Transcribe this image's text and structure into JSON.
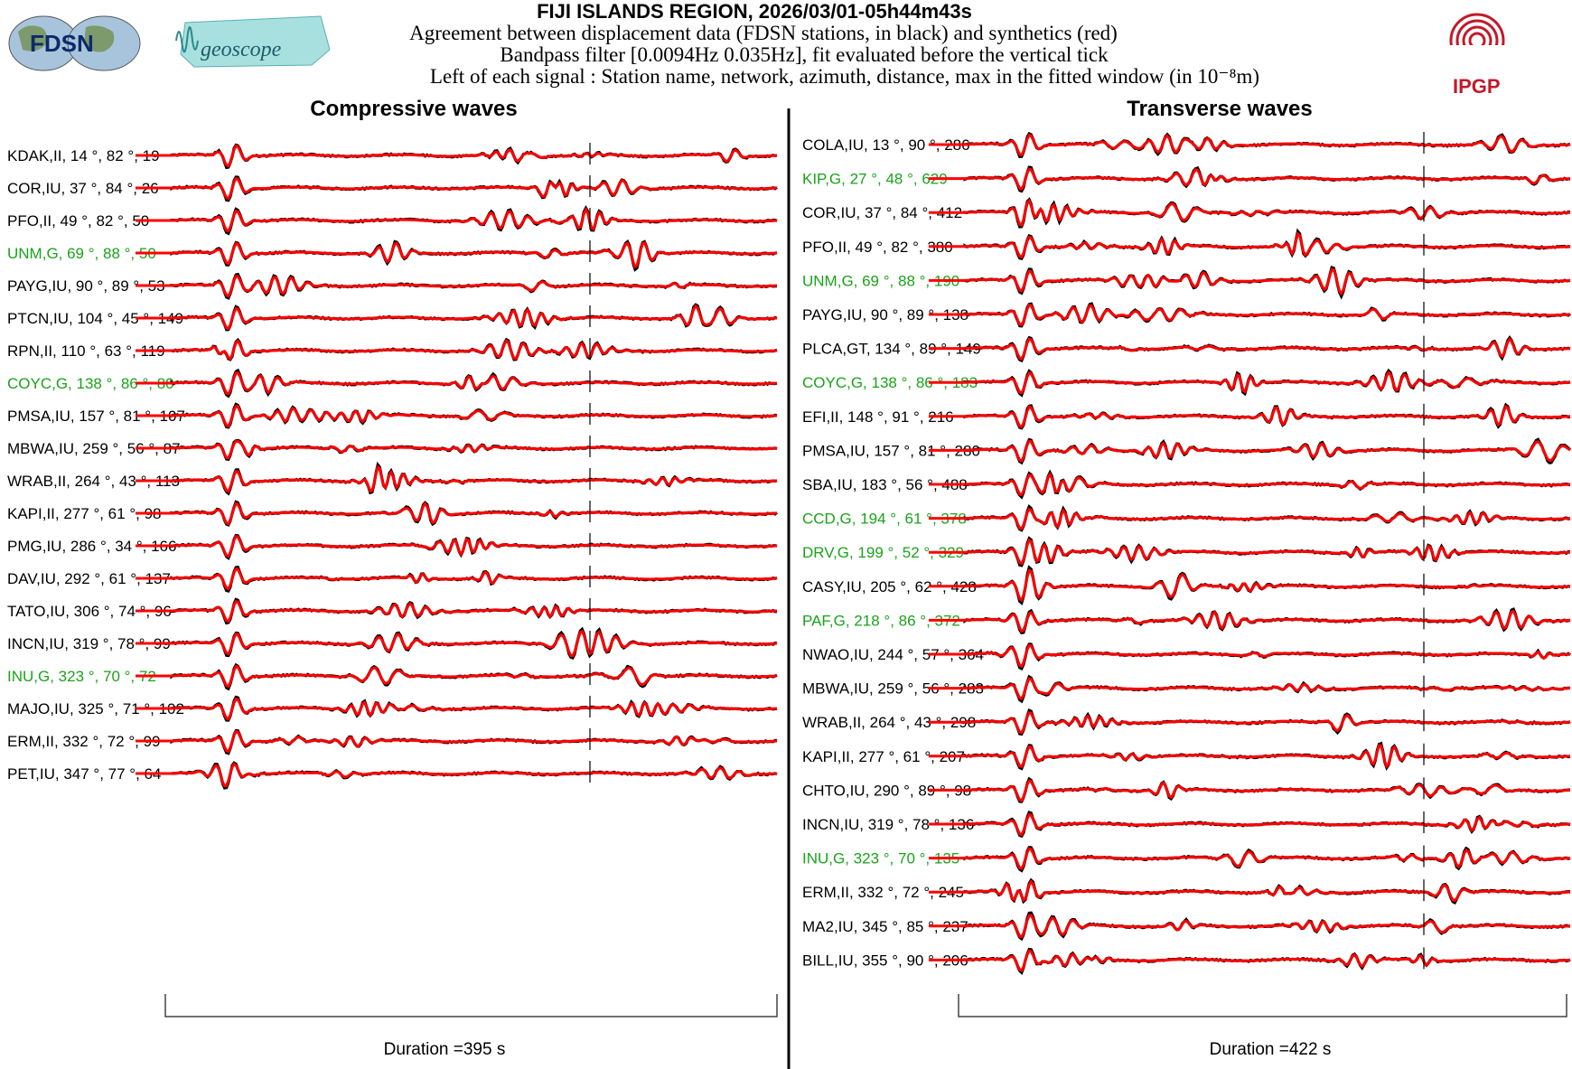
{
  "header": {
    "title": "FIJI ISLANDS REGION, 2026/03/01-05h44m43s",
    "line1": "Agreement between displacement data (FDSN stations, in black) and synthetics (red)",
    "line2": "Bandpass filter [0.0094Hz 0.035Hz], fit evaluated before the vertical tick",
    "line3": "Left of each signal : Station name, network, azimuth, distance, max in the fitted window (in 10⁻⁸m)"
  },
  "logos": {
    "fdsn": "FDSN",
    "geoscope": "geoscope",
    "ipgp": "IPGP"
  },
  "colors": {
    "data": "#000000",
    "synthetic": "#ff0000",
    "geoscope_station": "#1aa31a",
    "other_station": "#000000"
  },
  "panels": [
    {
      "title": "Compressive waves",
      "duration_label": "Duration =395 s",
      "stations": [
        {
          "label": "KDAK,II, 14 °, 82 °, 19",
          "geoscope": false
        },
        {
          "label": "COR,IU, 37 °, 84 °, 26",
          "geoscope": false
        },
        {
          "label": "PFO,II, 49 °, 82 °, 50",
          "geoscope": false
        },
        {
          "label": "UNM,G, 69 °, 88 °, 50",
          "geoscope": true
        },
        {
          "label": "PAYG,IU, 90 °, 89 °, 53",
          "geoscope": false
        },
        {
          "label": "PTCN,IU, 104 °, 45 °, 149",
          "geoscope": false
        },
        {
          "label": "RPN,II, 110 °, 63 °, 119",
          "geoscope": false
        },
        {
          "label": "COYC,G, 138 °, 86 °, 80",
          "geoscope": true
        },
        {
          "label": "PMSA,IU, 157 °, 81 °, 107",
          "geoscope": false
        },
        {
          "label": "MBWA,IU, 259 °, 56 °, 87",
          "geoscope": false
        },
        {
          "label": "WRAB,II, 264 °, 43 °, 113",
          "geoscope": false
        },
        {
          "label": "KAPI,II, 277 °, 61 °, 98",
          "geoscope": false
        },
        {
          "label": "PMG,IU, 286 °, 34 °, 166",
          "geoscope": false
        },
        {
          "label": "DAV,IU, 292 °, 61 °, 137",
          "geoscope": false
        },
        {
          "label": "TATO,IU, 306 °, 74 °, 96",
          "geoscope": false
        },
        {
          "label": "INCN,IU, 319 °, 78 °, 99",
          "geoscope": false
        },
        {
          "label": "INU,G, 323 °, 70 °, 72",
          "geoscope": true
        },
        {
          "label": "MAJO,IU, 325 °, 71 °, 102",
          "geoscope": false
        },
        {
          "label": "ERM,II, 332 °, 72 °, 99",
          "geoscope": false
        },
        {
          "label": "PET,IU, 347 °, 77 °, 64",
          "geoscope": false
        }
      ]
    },
    {
      "title": "Transverse waves",
      "duration_label": "Duration =422 s",
      "stations": [
        {
          "label": "COLA,IU, 13 °, 90 °, 286",
          "geoscope": false
        },
        {
          "label": "KIP,G, 27 °, 48 °, 629",
          "geoscope": true
        },
        {
          "label": "COR,IU, 37 °, 84 °, 412",
          "geoscope": false
        },
        {
          "label": "PFO,II, 49 °, 82 °, 380",
          "geoscope": false
        },
        {
          "label": "UNM,G, 69 °, 88 °, 190",
          "geoscope": true
        },
        {
          "label": "PAYG,IU, 90 °, 89 °, 138",
          "geoscope": false
        },
        {
          "label": "PLCA,GT, 134 °, 89 °, 149",
          "geoscope": false
        },
        {
          "label": "COYC,G, 138 °, 86 °, 183",
          "geoscope": true
        },
        {
          "label": "EFI,II, 148 °, 91 °, 216",
          "geoscope": false
        },
        {
          "label": "PMSA,IU, 157 °, 81 °, 280",
          "geoscope": false
        },
        {
          "label": "SBA,IU, 183 °, 56 °, 488",
          "geoscope": false
        },
        {
          "label": "CCD,G, 194 °, 61 °, 378",
          "geoscope": true
        },
        {
          "label": "DRV,G, 199 °, 52 °, 329",
          "geoscope": true
        },
        {
          "label": "CASY,IU, 205 °, 62 °, 428",
          "geoscope": false
        },
        {
          "label": "PAF,G, 218 °, 86 °, 372",
          "geoscope": true
        },
        {
          "label": "NWAO,IU, 244 °, 57 °, 364",
          "geoscope": false
        },
        {
          "label": "MBWA,IU, 259 °, 56 °, 283",
          "geoscope": false
        },
        {
          "label": "WRAB,II, 264 °, 43 °, 298",
          "geoscope": false
        },
        {
          "label": "KAPI,II, 277 °, 61 °, 207",
          "geoscope": false
        },
        {
          "label": "CHTO,IU, 290 °, 89 °, 98",
          "geoscope": false
        },
        {
          "label": "INCN,IU, 319 °, 78 °, 136",
          "geoscope": false
        },
        {
          "label": "INU,G, 323 °, 70 °, 135",
          "geoscope": true
        },
        {
          "label": "ERM,II, 332 °, 72 °, 245",
          "geoscope": false
        },
        {
          "label": "MA2,IU, 345 °, 85 °, 237",
          "geoscope": false
        },
        {
          "label": "BILL,IU, 355 °, 90 °, 206",
          "geoscope": false
        }
      ]
    }
  ],
  "chart_data": {
    "type": "line",
    "description_series": [
      "data",
      "synthetic"
    ],
    "compressive_duration_s": 395,
    "transverse_duration_s": 422
  }
}
